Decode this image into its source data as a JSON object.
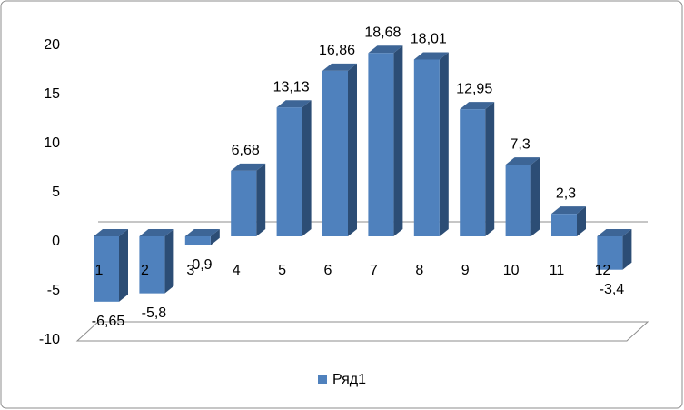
{
  "chart_data": {
    "type": "bar3d",
    "categories": [
      "1",
      "2",
      "3",
      "4",
      "5",
      "6",
      "7",
      "8",
      "9",
      "10",
      "11",
      "12"
    ],
    "series": [
      {
        "name": "Ряд1",
        "color": "#4f81bd",
        "values": [
          -6.65,
          -5.8,
          -0.9,
          6.68,
          13.13,
          16.86,
          18.68,
          18.01,
          12.95,
          7.3,
          2.3,
          -3.4
        ],
        "value_labels": [
          "-6,65",
          "-5,8",
          "-0,9",
          "6,68",
          "13,13",
          "16,86",
          "18,68",
          "18,01",
          "12,95",
          "7,3",
          "2,3",
          "-3,4"
        ]
      }
    ],
    "ylim": [
      -10,
      20
    ],
    "yticks": [
      -10,
      -5,
      0,
      5,
      10,
      15,
      20
    ],
    "legend": "bottom"
  }
}
